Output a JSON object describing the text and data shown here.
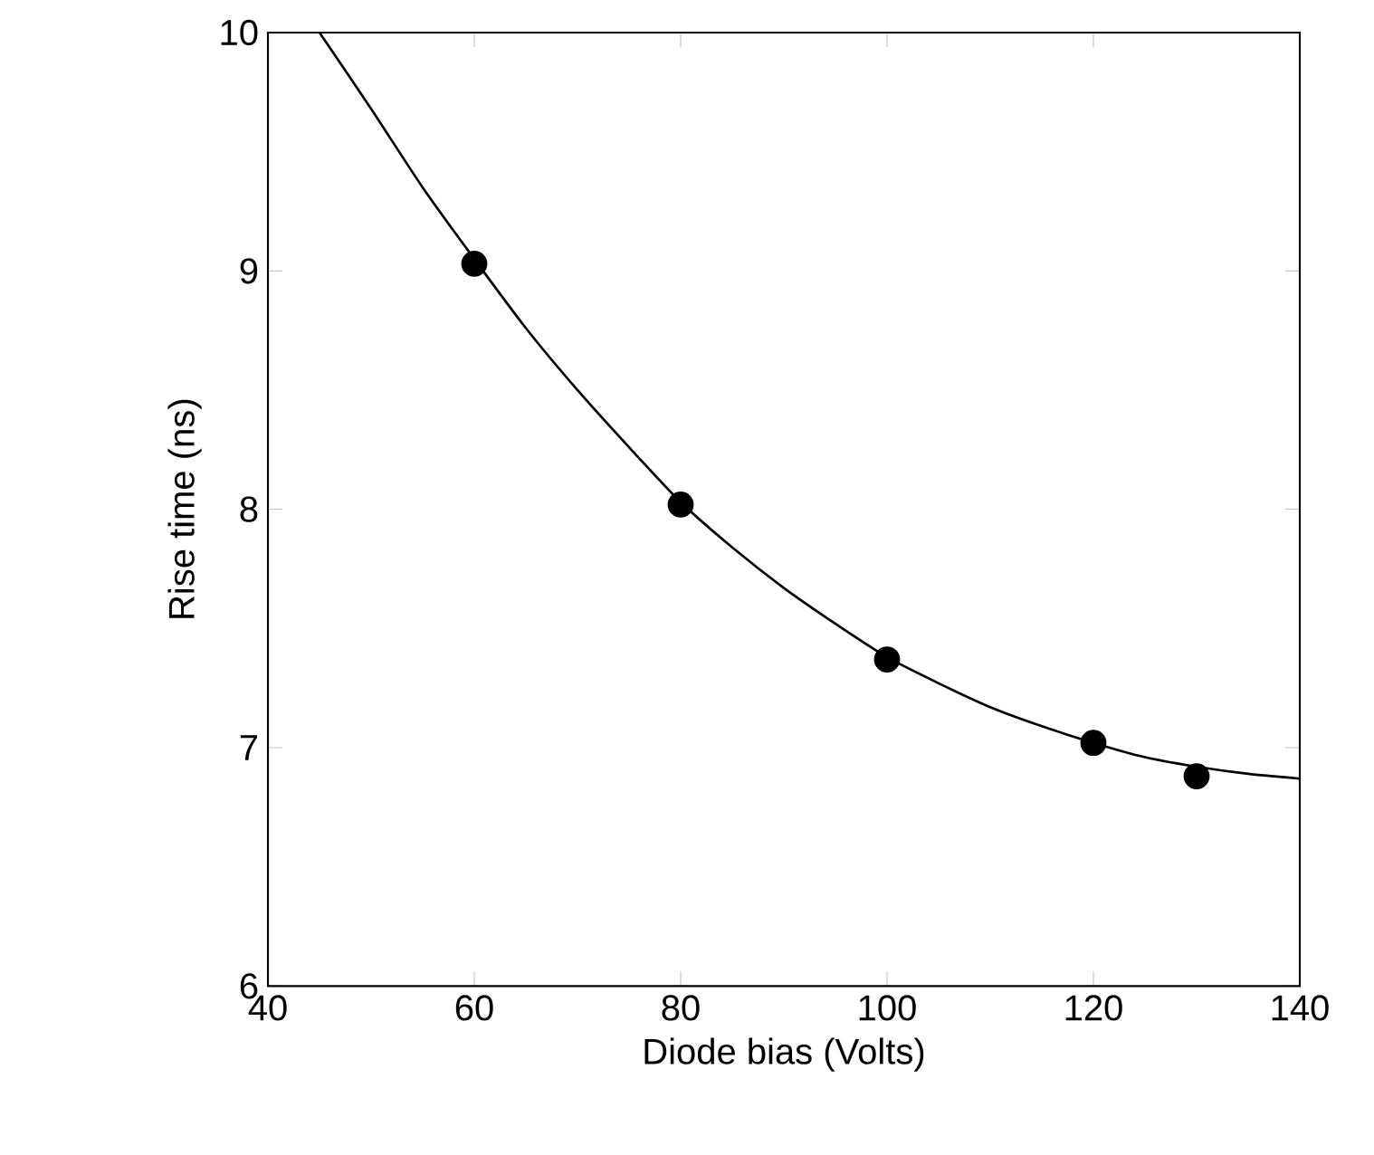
{
  "chart_data": {
    "type": "scatter",
    "xlabel": "Diode bias (Volts)",
    "ylabel": "Rise time (ns)",
    "xlim": [
      40,
      140
    ],
    "ylim": [
      6,
      10
    ],
    "xticks": [
      40,
      60,
      80,
      100,
      120,
      140
    ],
    "yticks": [
      6,
      7,
      8,
      9,
      10
    ],
    "grid": false,
    "series": [
      {
        "type": "line",
        "color": "#000000",
        "marker": "none",
        "line_style": "solid",
        "x": [
          45,
          50,
          55,
          60,
          65,
          70,
          75,
          80,
          85,
          90,
          95,
          100,
          105,
          110,
          115,
          120,
          125,
          130,
          135,
          140
        ],
        "values": [
          10.0,
          9.68,
          9.35,
          9.05,
          8.76,
          8.5,
          8.26,
          8.03,
          7.84,
          7.67,
          7.52,
          7.38,
          7.27,
          7.17,
          7.09,
          7.02,
          6.96,
          6.92,
          6.89,
          6.87
        ]
      },
      {
        "type": "scatter",
        "color": "#000000",
        "marker": "circle",
        "x": [
          60,
          80,
          100,
          120,
          130
        ],
        "values": [
          9.03,
          8.02,
          7.37,
          7.02,
          6.88
        ]
      }
    ]
  }
}
